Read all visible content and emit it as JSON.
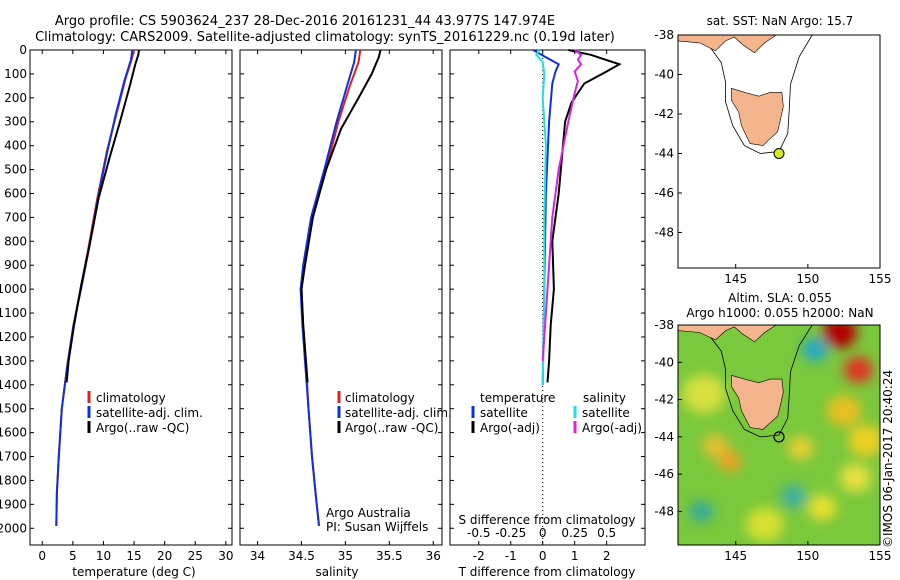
{
  "header": {
    "line1": "Argo profile: CS 5903624_237 28-Dec-2016 20161231_44 43.977S 147.974E",
    "line2": "Climatology: CARS2009. Satellite-adjusted climatology: synTS_20161229.nc (0.19d later)"
  },
  "side_note": "©IMOS 06-Jan-2017 20:40:24",
  "colors": {
    "climatology": "#e02020",
    "satellite": "#1030e0",
    "argo": "#000000",
    "sat_sal": "#22e0e0",
    "argo_sal": "#e020e0",
    "land": "#f4b48c"
  },
  "chart_data": [
    {
      "type": "line",
      "xlabel": "temperature (deg C)",
      "xlim": [
        -2,
        31
      ],
      "ylim": [
        2070,
        0
      ],
      "xticks": [
        0,
        5,
        10,
        15,
        20,
        25,
        30
      ],
      "yticks": [
        0,
        100,
        200,
        300,
        400,
        500,
        600,
        700,
        800,
        900,
        1000,
        1100,
        1200,
        1300,
        1400,
        1500,
        1600,
        1700,
        1800,
        1900,
        2000
      ],
      "legend": [
        {
          "label": "climatology",
          "color": "#e02020"
        },
        {
          "label": "satellite-adj. clim.",
          "color": "#1030e0"
        },
        {
          "label": "Argo(..raw -QC)",
          "color": "#000000"
        }
      ],
      "series": [
        {
          "key": "clim",
          "color": "#e02020",
          "points": [
            [
              15.0,
              0
            ],
            [
              14.6,
              40
            ],
            [
              13.6,
              120
            ],
            [
              12.2,
              260
            ],
            [
              10.6,
              420
            ],
            [
              9.0,
              620
            ],
            [
              7.6,
              820
            ],
            [
              6.4,
              980
            ],
            [
              5.1,
              1150
            ],
            [
              4.1,
              1320
            ],
            [
              3.2,
              1500
            ],
            [
              2.7,
              1700
            ],
            [
              2.4,
              1850
            ],
            [
              2.3,
              1990
            ]
          ]
        },
        {
          "key": "sat",
          "color": "#1030e0",
          "points": [
            [
              14.7,
              0
            ],
            [
              14.5,
              40
            ],
            [
              13.4,
              130
            ],
            [
              12.0,
              270
            ],
            [
              10.6,
              430
            ],
            [
              9.1,
              620
            ],
            [
              7.7,
              820
            ],
            [
              6.5,
              980
            ],
            [
              5.1,
              1150
            ],
            [
              4.1,
              1320
            ],
            [
              3.2,
              1500
            ],
            [
              2.7,
              1700
            ],
            [
              2.4,
              1850
            ],
            [
              2.3,
              1990
            ]
          ]
        },
        {
          "key": "argo",
          "color": "#000000",
          "points": [
            [
              15.8,
              0
            ],
            [
              15.7,
              20
            ],
            [
              15.2,
              60
            ],
            [
              14.3,
              150
            ],
            [
              12.7,
              300
            ],
            [
              11.0,
              450
            ],
            [
              9.2,
              620
            ],
            [
              7.7,
              820
            ],
            [
              6.4,
              980
            ],
            [
              5.2,
              1150
            ],
            [
              4.3,
              1300
            ],
            [
              4.0,
              1390
            ]
          ]
        }
      ]
    },
    {
      "type": "line",
      "xlabel": "salinity",
      "xlim": [
        33.8,
        36.1
      ],
      "ylim": [
        2070,
        0
      ],
      "xticks": [
        34,
        34.5,
        35,
        35.5,
        36
      ],
      "legend": [
        {
          "label": "climatology",
          "color": "#e02020"
        },
        {
          "label": "satellite-adj. clim.",
          "color": "#1030e0"
        },
        {
          "label": "Argo(..raw -QC)",
          "color": "#000000"
        }
      ],
      "annotations": [
        "Argo Australia",
        "PI: Susan Wijffels"
      ],
      "series": [
        {
          "key": "clim",
          "color": "#e02020",
          "points": [
            [
              35.17,
              0
            ],
            [
              35.15,
              50
            ],
            [
              35.05,
              150
            ],
            [
              34.92,
              300
            ],
            [
              34.78,
              500
            ],
            [
              34.62,
              700
            ],
            [
              34.53,
              900
            ],
            [
              34.5,
              1000
            ],
            [
              34.52,
              1150
            ],
            [
              34.55,
              1300
            ],
            [
              34.58,
              1500
            ],
            [
              34.62,
              1700
            ],
            [
              34.66,
              1850
            ],
            [
              34.7,
              1990
            ]
          ]
        },
        {
          "key": "sat",
          "color": "#1030e0",
          "points": [
            [
              35.12,
              0
            ],
            [
              35.1,
              50
            ],
            [
              35.02,
              150
            ],
            [
              34.9,
              300
            ],
            [
              34.76,
              500
            ],
            [
              34.61,
              700
            ],
            [
              34.52,
              900
            ],
            [
              34.49,
              1000
            ],
            [
              34.51,
              1150
            ],
            [
              34.54,
              1300
            ],
            [
              34.58,
              1500
            ],
            [
              34.62,
              1700
            ],
            [
              34.66,
              1850
            ],
            [
              34.7,
              1990
            ]
          ]
        },
        {
          "key": "argo",
          "color": "#000000",
          "points": [
            [
              35.4,
              0
            ],
            [
              35.38,
              30
            ],
            [
              35.3,
              100
            ],
            [
              35.15,
              200
            ],
            [
              34.95,
              330
            ],
            [
              34.78,
              500
            ],
            [
              34.63,
              700
            ],
            [
              34.54,
              900
            ],
            [
              34.5,
              1000
            ],
            [
              34.52,
              1150
            ],
            [
              34.55,
              1300
            ],
            [
              34.57,
              1390
            ]
          ]
        }
      ]
    },
    {
      "type": "line",
      "xlabel": "T difference from climatology",
      "xlabel2": "S difference from climatology",
      "xlim": [
        -2.9,
        3.2
      ],
      "ylim": [
        2070,
        0
      ],
      "xticks": [
        -2,
        -1,
        0,
        1,
        2
      ],
      "xticks2": [
        "-0.5",
        "-0.25",
        "0",
        "0.25",
        "0.5"
      ],
      "legend_temperature_title": "temperature",
      "legend_salinity_title": "salinity",
      "legend": [
        {
          "label": "satellite",
          "color": "#1030e0",
          "group": "temperature"
        },
        {
          "label": "Argo(-adj)",
          "color": "#000000",
          "group": "temperature"
        },
        {
          "label": "satellite",
          "color": "#22e0e0",
          "group": "salinity"
        },
        {
          "label": "Argo(-adj)",
          "color": "#e020e0",
          "group": "salinity"
        }
      ],
      "series": [
        {
          "key": "sat_t",
          "color": "#1030e0",
          "points": [
            [
              -0.3,
              0
            ],
            [
              0.1,
              30
            ],
            [
              0.5,
              60
            ],
            [
              0.4,
              90
            ],
            [
              0.3,
              140
            ],
            [
              0.2,
              300
            ],
            [
              0.1,
              600
            ],
            [
              0.05,
              1000
            ],
            [
              0.0,
              1400
            ]
          ]
        },
        {
          "key": "argo_t",
          "color": "#000000",
          "points": [
            [
              0.8,
              0
            ],
            [
              1.5,
              20
            ],
            [
              2.4,
              60
            ],
            [
              2.0,
              90
            ],
            [
              1.3,
              140
            ],
            [
              0.9,
              220
            ],
            [
              0.7,
              300
            ],
            [
              0.6,
              450
            ],
            [
              0.5,
              600
            ],
            [
              0.3,
              800
            ],
            [
              0.35,
              1000
            ],
            [
              0.25,
              1150
            ],
            [
              0.2,
              1300
            ],
            [
              0.15,
              1390
            ]
          ]
        },
        {
          "key": "sat_s",
          "color": "#22e0e0",
          "points": [
            [
              -0.1,
              0
            ],
            [
              -0.2,
              20
            ],
            [
              0.0,
              50
            ],
            [
              0.05,
              100
            ],
            [
              0.0,
              200
            ],
            [
              0.1,
              400
            ],
            [
              0.05,
              700
            ],
            [
              0.05,
              1000
            ],
            [
              0.0,
              1400
            ]
          ]
        },
        {
          "key": "argo_s",
          "color": "#e020e0",
          "points": [
            [
              1.0,
              0
            ],
            [
              1.2,
              20
            ],
            [
              1.1,
              40
            ],
            [
              1.2,
              60
            ],
            [
              1.0,
              90
            ],
            [
              1.1,
              130
            ],
            [
              1.0,
              180
            ],
            [
              0.8,
              300
            ],
            [
              0.5,
              500
            ],
            [
              0.3,
              700
            ],
            [
              0.2,
              900
            ],
            [
              0.1,
              1100
            ],
            [
              0.0,
              1300
            ]
          ]
        }
      ]
    },
    {
      "type": "map",
      "title": "sat. SST: NaN Argo: 15.7",
      "xlim": [
        141,
        155
      ],
      "ylim": [
        -49.8,
        -38
      ],
      "xticks": [
        145,
        150,
        155
      ],
      "yticks": [
        -48,
        -46,
        -44,
        -42,
        -40,
        -38
      ],
      "marker": {
        "lon": 148.0,
        "lat": -44.0,
        "fill": "#d8e818"
      }
    },
    {
      "type": "heatmap",
      "title_line1": "Altim. SLA: 0.055",
      "title_line2": "Argo h1000: 0.055 h2000: NaN",
      "xlim": [
        141,
        155
      ],
      "ylim": [
        -49.8,
        -38
      ],
      "xticks": [
        145,
        150,
        155
      ],
      "yticks": [
        -48,
        -46,
        -44,
        -42,
        -40,
        -38
      ],
      "marker": {
        "lon": 148.0,
        "lat": -44.0
      }
    }
  ]
}
